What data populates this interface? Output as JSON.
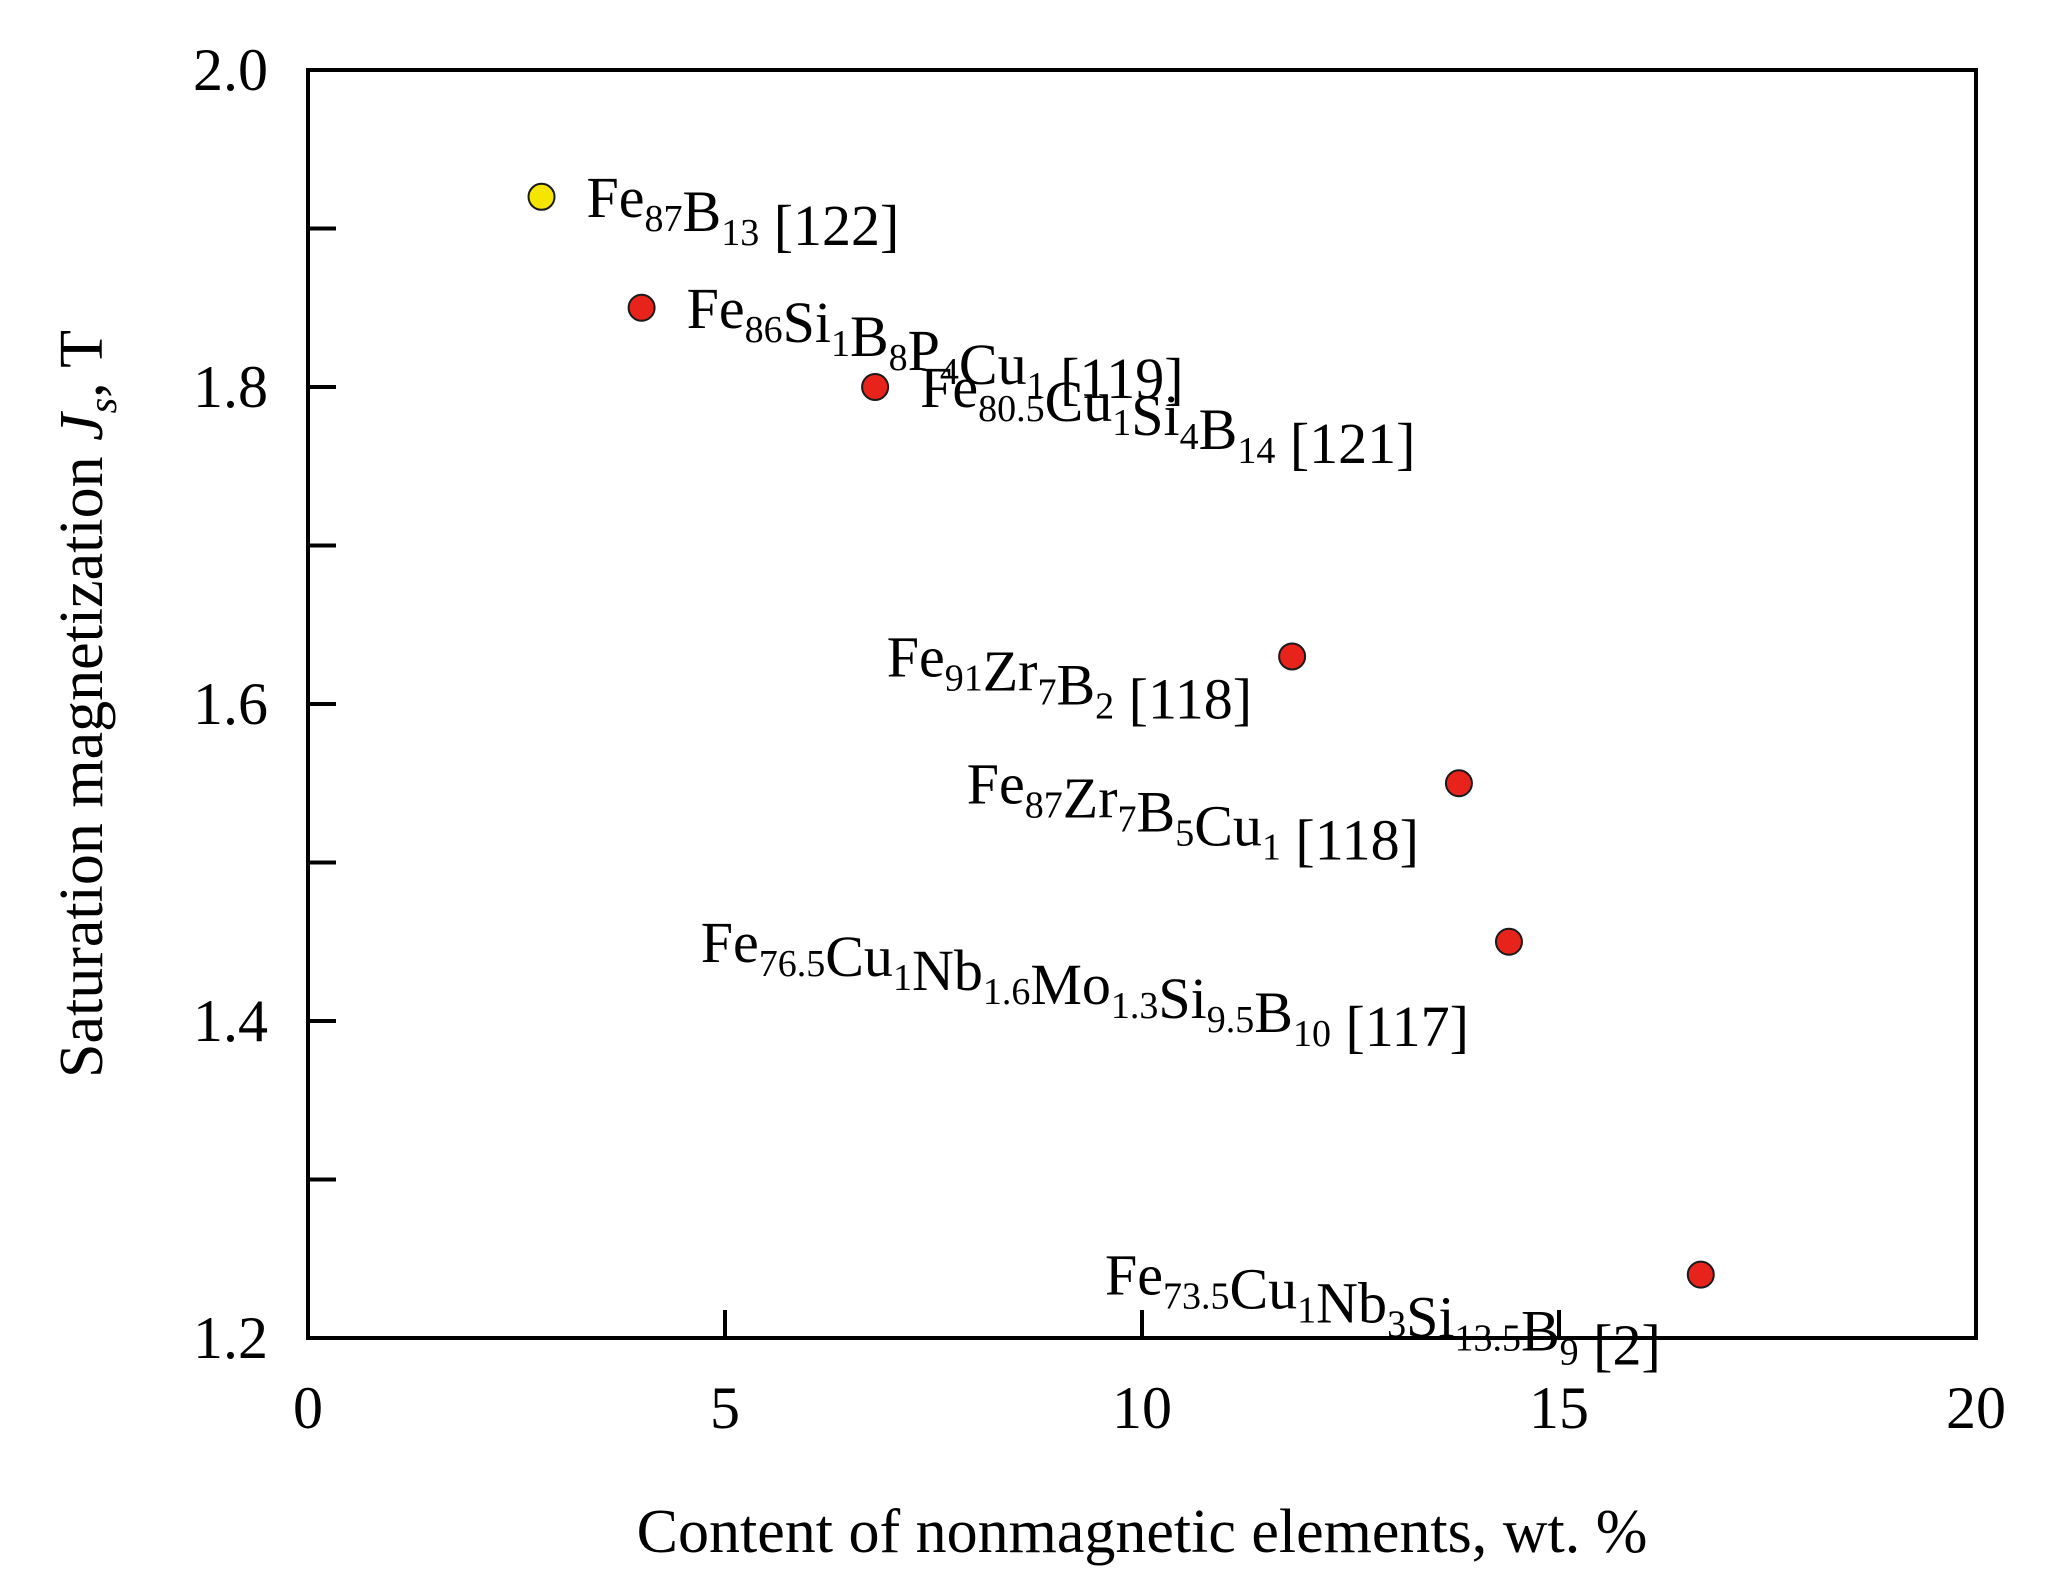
{
  "chart_data": {
    "type": "scatter",
    "title": "",
    "xlabel": "Content of nonmagnetic elements, wt. %",
    "ylabel": {
      "prefix": "Saturation magnetization ",
      "symbol": "J",
      "symbol_sub": "s",
      "suffix": ", T"
    },
    "xlim": [
      0,
      20
    ],
    "ylim": [
      1.2,
      2.0
    ],
    "xticks": [
      "0",
      "5",
      "10",
      "15",
      "20"
    ],
    "yticks": [
      "1.2",
      "1.4",
      "1.6",
      "1.8",
      "2.0"
    ],
    "grid": false,
    "points": [
      {
        "x": 2.8,
        "y": 1.92,
        "color": "#f5e600",
        "label_side": "right",
        "formula": [
          [
            "Fe",
            "87"
          ],
          [
            "B",
            "13"
          ]
        ],
        "ref": "[122]"
      },
      {
        "x": 4.0,
        "y": 1.85,
        "color": "#e8231b",
        "label_side": "right",
        "formula": [
          [
            "Fe",
            "86"
          ],
          [
            "Si",
            "1"
          ],
          [
            "B",
            "8"
          ],
          [
            "P",
            "4"
          ],
          [
            "Cu",
            "1"
          ]
        ],
        "ref": "[119]"
      },
      {
        "x": 6.8,
        "y": 1.8,
        "color": "#e8231b",
        "label_side": "right",
        "formula": [
          [
            "Fe",
            "80.5"
          ],
          [
            "Cu",
            "1"
          ],
          [
            "Si",
            "4"
          ],
          [
            "B",
            "14"
          ]
        ],
        "ref": "[121]"
      },
      {
        "x": 11.8,
        "y": 1.63,
        "color": "#e8231b",
        "label_side": "left",
        "formula": [
          [
            "Fe",
            "91"
          ],
          [
            "Zr",
            "7"
          ],
          [
            "B",
            "2"
          ]
        ],
        "ref": "[118]"
      },
      {
        "x": 13.8,
        "y": 1.55,
        "color": "#e8231b",
        "label_side": "left",
        "formula": [
          [
            "Fe",
            "87"
          ],
          [
            "Zr",
            "7"
          ],
          [
            "B",
            "5"
          ],
          [
            "Cu",
            "1"
          ]
        ],
        "ref": "[118]"
      },
      {
        "x": 14.4,
        "y": 1.45,
        "color": "#e8231b",
        "label_side": "left",
        "formula": [
          [
            "Fe",
            "76.5"
          ],
          [
            "Cu",
            "1"
          ],
          [
            "Nb",
            "1.6"
          ],
          [
            "Mo",
            "1.3"
          ],
          [
            "Si",
            "9.5"
          ],
          [
            "B",
            "10"
          ]
        ],
        "ref": "[117]"
      },
      {
        "x": 16.7,
        "y": 1.24,
        "color": "#e8231b",
        "label_side": "left",
        "formula": [
          [
            "Fe",
            "73.5"
          ],
          [
            "Cu",
            "1"
          ],
          [
            "Nb",
            "3"
          ],
          [
            "Si",
            "13.5"
          ],
          [
            "B",
            "9"
          ]
        ],
        "ref": "[2]"
      }
    ]
  }
}
